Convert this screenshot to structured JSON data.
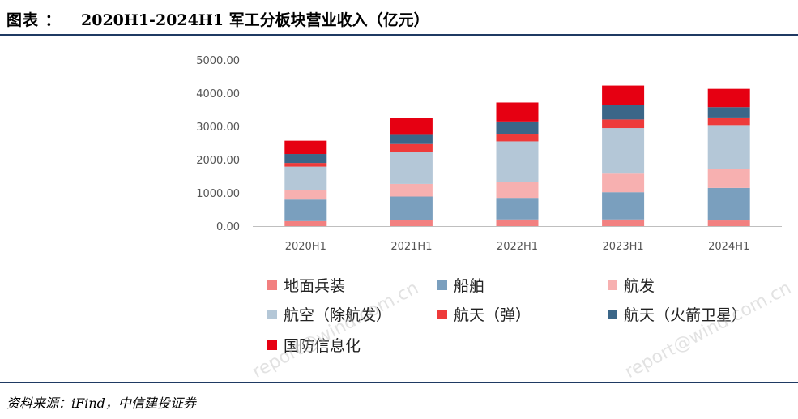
{
  "header": {
    "label": "图表 ：",
    "title": "2020H1-2024H1 军工分板块营业收入（亿元）"
  },
  "footer": {
    "source": "资料来源：iFind，中信建投证券"
  },
  "watermark": "report@wind.com.cn",
  "chart_data": {
    "type": "bar",
    "stacked": true,
    "categories": [
      "2020H1",
      "2021H1",
      "2022H1",
      "2023H1",
      "2024H1"
    ],
    "ylim": [
      0,
      5000
    ],
    "yticks": [
      "0.00",
      "1000.00",
      "2000.00",
      "3000.00",
      "4000.00",
      "5000.00"
    ],
    "xlabel": "",
    "ylabel": "",
    "grid": false,
    "legend_position": "bottom",
    "series": [
      {
        "name": "地面兵装",
        "color": "#f28080",
        "values": [
          150,
          190,
          200,
          200,
          170
        ]
      },
      {
        "name": "船舶",
        "color": "#7a9fbe",
        "values": [
          650,
          700,
          650,
          820,
          980
        ]
      },
      {
        "name": "航发",
        "color": "#f7b0b0",
        "values": [
          290,
          380,
          470,
          560,
          580
        ]
      },
      {
        "name": "航空（除航发）",
        "color": "#b4c7d7",
        "values": [
          700,
          960,
          1230,
          1370,
          1310
        ]
      },
      {
        "name": "航天（弹）",
        "color": "#ee3a3a",
        "values": [
          110,
          240,
          230,
          260,
          230
        ]
      },
      {
        "name": "航天（火箭卫星）",
        "color": "#3b6688",
        "values": [
          270,
          300,
          370,
          430,
          310
        ]
      },
      {
        "name": "国防信息化",
        "color": "#e60012",
        "values": [
          400,
          480,
          570,
          590,
          550
        ]
      }
    ]
  }
}
